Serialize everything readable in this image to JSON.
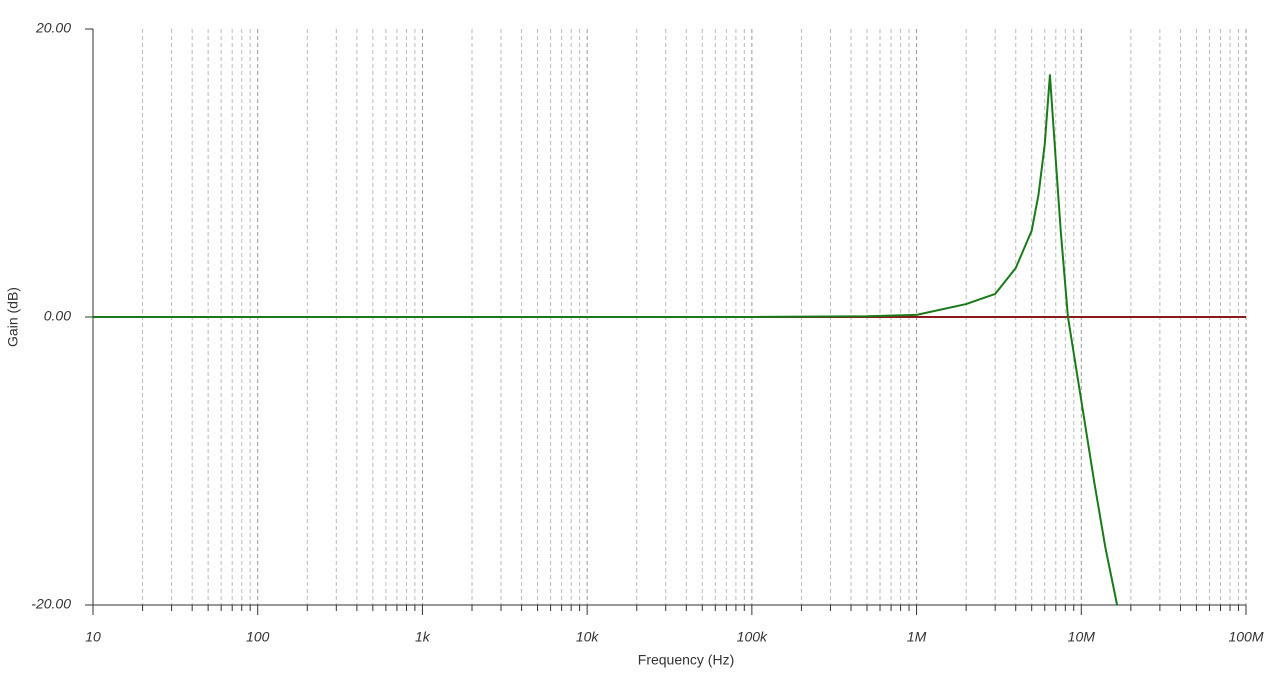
{
  "chart_data": {
    "type": "line",
    "x_label": "Frequency (Hz)",
    "y_label": "Gain (dB)",
    "xscale": "log",
    "grid": true,
    "xlim": [
      10,
      100000000
    ],
    "xticks": [
      10,
      100,
      {
        "value": 1000,
        "label": "1k"
      },
      {
        "value": 10000,
        "label": "10k"
      },
      {
        "value": 100000,
        "label": "100k"
      },
      {
        "value": 1000000,
        "label": "1M"
      },
      {
        "value": 10000000,
        "label": "10M"
      },
      {
        "value": 100000000,
        "label": "100M"
      }
    ],
    "xminorticks": [
      20,
      30,
      40,
      50,
      60,
      70,
      80,
      90,
      200,
      300,
      400,
      500,
      600,
      700,
      800,
      900,
      2000,
      3000,
      4000,
      5000,
      6000,
      7000,
      8000,
      9000,
      20000,
      30000,
      40000,
      50000,
      60000,
      70000,
      80000,
      90000,
      200000,
      300000,
      400000,
      500000,
      600000,
      700000,
      800000,
      900000,
      2000000,
      3000000,
      4000000,
      5000000,
      6000000,
      7000000,
      8000000,
      9000000,
      20000000,
      30000000,
      40000000,
      50000000,
      60000000,
      70000000,
      80000000,
      90000000
    ],
    "ylim": [
      -20,
      20
    ],
    "yticks": [
      {
        "value": -20,
        "label": "-20.00"
      },
      {
        "value": 0,
        "label": "0.00"
      },
      {
        "value": 20,
        "label": "20.00"
      }
    ],
    "series": [
      {
        "color": "#8b1a1a",
        "x": [
          10,
          100000000
        ],
        "values": [
          0,
          0
        ]
      },
      {
        "color": "#1a7a1a",
        "x": [
          10,
          100000,
          500000,
          1000000,
          2000000,
          3000000,
          4000000,
          5000000,
          5500000,
          6000000,
          6450000,
          7000000,
          7500000,
          8300000,
          10000000,
          12000000,
          14000000,
          16500000
        ],
        "values": [
          0,
          0,
          0.05,
          0.15,
          0.9,
          1.6,
          3.4,
          6,
          8.5,
          12,
          16.8,
          10.9,
          6,
          0,
          -5.8,
          -11.5,
          -16,
          -20
        ]
      }
    ]
  }
}
